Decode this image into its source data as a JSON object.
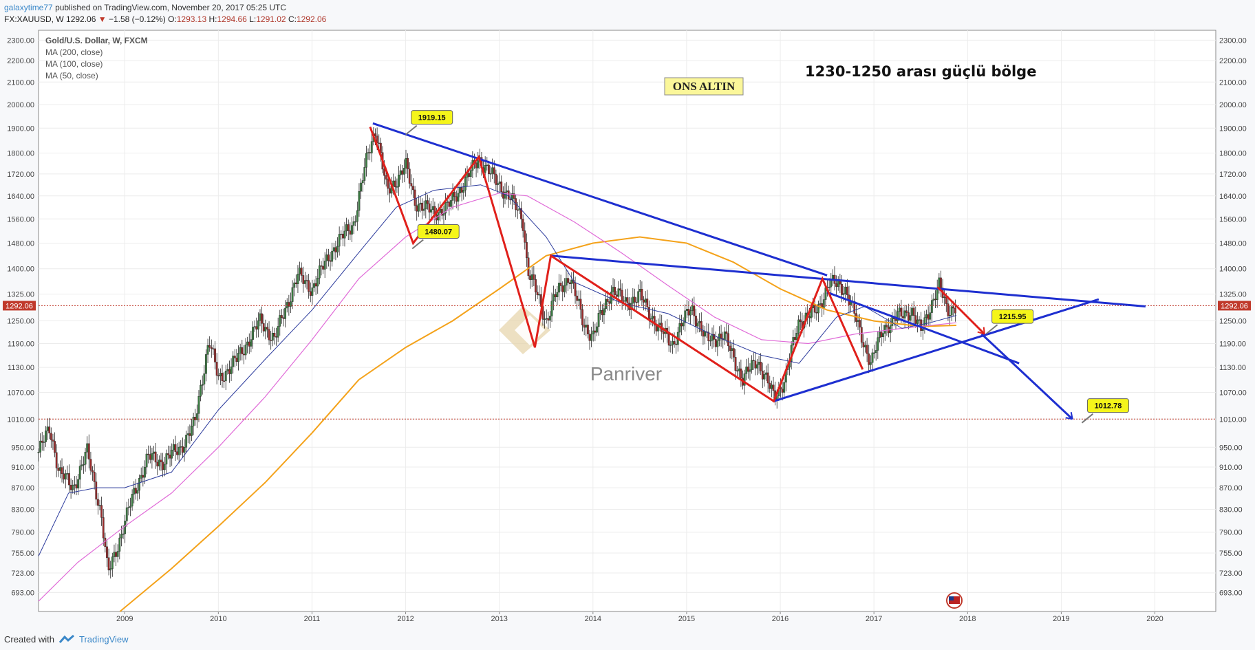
{
  "header": {
    "author": "galaxytime77",
    "published_text": "published on TradingView.com, November 20, 2017 05:25 UTC",
    "symbol": "FX:XAUUSD, W",
    "price": "1292.06",
    "change": "−1.58 (−0.12%)",
    "o_label": "O:",
    "o_value": "1293.13",
    "h_label": "H:",
    "h_value": "1294.66",
    "l_label": "L:",
    "l_value": "1291.02",
    "c_label": "C:",
    "c_value": "1292.06"
  },
  "footer": {
    "created_with": "Created with",
    "brand": "TradingView"
  },
  "colors": {
    "candle_up": "#3b7d42",
    "candle_down": "#9a2b2b",
    "ma200": "#f4a21a",
    "ma100": "#e06bd8",
    "ma50": "#2b3a9c",
    "trend_blue": "#1e2fd0",
    "trend_red": "#e0201b",
    "price_line": "#c0392b",
    "label_yellow": "#f5f51a"
  },
  "chart_data": {
    "type": "candlestick",
    "title": "Gold/U.S. Dollar, W, FXCM",
    "indicators": [
      "MA (200, close)",
      "MA (100, close)",
      "MA (50, close)"
    ],
    "y_scale": "log",
    "ylim": [
      665,
      2350
    ],
    "xlim": [
      2008.08,
      2020.65
    ],
    "y_ticks": [
      "2300.00",
      "2200.00",
      "2100.00",
      "2000.00",
      "1900.00",
      "1800.00",
      "1720.00",
      "1640.00",
      "1560.00",
      "1480.00",
      "1400.00",
      "1325.00",
      "1250.00",
      "1190.00",
      "1130.00",
      "1070.00",
      "1010.00",
      "950.00",
      "910.00",
      "870.00",
      "830.00",
      "790.00",
      "755.00",
      "723.00",
      "693.00"
    ],
    "x_ticks": [
      "2009",
      "2010",
      "2011",
      "2012",
      "2013",
      "2014",
      "2015",
      "2016",
      "2017",
      "2018",
      "2019",
      "2020"
    ],
    "current_price": 1292.06,
    "current_price_label": "1292.06",
    "support_level": 1010,
    "price_path": [
      [
        2008.08,
        940
      ],
      [
        2008.2,
        990
      ],
      [
        2008.3,
        900
      ],
      [
        2008.45,
        870
      ],
      [
        2008.6,
        940
      ],
      [
        2008.75,
        820
      ],
      [
        2008.82,
        720
      ],
      [
        2008.95,
        780
      ],
      [
        2009.1,
        860
      ],
      [
        2009.25,
        930
      ],
      [
        2009.4,
        920
      ],
      [
        2009.6,
        950
      ],
      [
        2009.75,
        1000
      ],
      [
        2009.9,
        1200
      ],
      [
        2010.0,
        1100
      ],
      [
        2010.2,
        1150
      ],
      [
        2010.45,
        1250
      ],
      [
        2010.6,
        1200
      ],
      [
        2010.85,
        1380
      ],
      [
        2011.0,
        1340
      ],
      [
        2011.2,
        1450
      ],
      [
        2011.45,
        1550
      ],
      [
        2011.6,
        1800
      ],
      [
        2011.68,
        1900
      ],
      [
        2011.8,
        1650
      ],
      [
        2012.0,
        1750
      ],
      [
        2012.1,
        1620
      ],
      [
        2012.3,
        1580
      ],
      [
        2012.45,
        1600
      ],
      [
        2012.65,
        1700
      ],
      [
        2012.78,
        1780
      ],
      [
        2012.95,
        1700
      ],
      [
        2013.1,
        1640
      ],
      [
        2013.25,
        1560
      ],
      [
        2013.3,
        1400
      ],
      [
        2013.5,
        1250
      ],
      [
        2013.6,
        1320
      ],
      [
        2013.75,
        1380
      ],
      [
        2013.9,
        1240
      ],
      [
        2014.0,
        1210
      ],
      [
        2014.2,
        1340
      ],
      [
        2014.35,
        1300
      ],
      [
        2014.5,
        1320
      ],
      [
        2014.7,
        1230
      ],
      [
        2014.85,
        1190
      ],
      [
        2015.05,
        1290
      ],
      [
        2015.2,
        1200
      ],
      [
        2015.4,
        1210
      ],
      [
        2015.6,
        1100
      ],
      [
        2015.75,
        1150
      ],
      [
        2015.93,
        1060
      ],
      [
        2016.05,
        1100
      ],
      [
        2016.2,
        1250
      ],
      [
        2016.4,
        1280
      ],
      [
        2016.52,
        1360
      ],
      [
        2016.7,
        1340
      ],
      [
        2016.85,
        1220
      ],
      [
        2016.97,
        1140
      ],
      [
        2017.1,
        1230
      ],
      [
        2017.25,
        1260
      ],
      [
        2017.4,
        1280
      ],
      [
        2017.5,
        1220
      ],
      [
        2017.6,
        1290
      ],
      [
        2017.7,
        1350
      ],
      [
        2017.78,
        1280
      ],
      [
        2017.88,
        1292
      ]
    ],
    "ma_series": [
      {
        "name": "MA (200, close)",
        "points": [
          [
            2008.95,
            665
          ],
          [
            2009.5,
            730
          ],
          [
            2010.0,
            800
          ],
          [
            2010.5,
            880
          ],
          [
            2011.0,
            980
          ],
          [
            2011.5,
            1100
          ],
          [
            2012.0,
            1180
          ],
          [
            2012.5,
            1250
          ],
          [
            2013.0,
            1340
          ],
          [
            2013.5,
            1440
          ],
          [
            2014.0,
            1480
          ],
          [
            2014.5,
            1500
          ],
          [
            2015.0,
            1480
          ],
          [
            2015.5,
            1420
          ],
          [
            2016.0,
            1340
          ],
          [
            2016.5,
            1280
          ],
          [
            2017.0,
            1250
          ],
          [
            2017.5,
            1235
          ],
          [
            2017.88,
            1238
          ]
        ]
      },
      {
        "name": "MA (100, close)",
        "points": [
          [
            2008.08,
            680
          ],
          [
            2008.5,
            740
          ],
          [
            2009.0,
            800
          ],
          [
            2009.5,
            860
          ],
          [
            2010.0,
            950
          ],
          [
            2010.5,
            1060
          ],
          [
            2011.0,
            1200
          ],
          [
            2011.5,
            1370
          ],
          [
            2012.0,
            1500
          ],
          [
            2012.5,
            1600
          ],
          [
            2013.0,
            1650
          ],
          [
            2013.3,
            1640
          ],
          [
            2013.8,
            1550
          ],
          [
            2014.3,
            1450
          ],
          [
            2014.8,
            1350
          ],
          [
            2015.3,
            1260
          ],
          [
            2015.8,
            1200
          ],
          [
            2016.3,
            1190
          ],
          [
            2016.8,
            1215
          ],
          [
            2017.3,
            1230
          ],
          [
            2017.88,
            1245
          ]
        ]
      },
      {
        "name": "MA (50, close)",
        "points": [
          [
            2008.08,
            750
          ],
          [
            2008.4,
            860
          ],
          [
            2008.7,
            870
          ],
          [
            2009.0,
            870
          ],
          [
            2009.5,
            900
          ],
          [
            2010.0,
            1030
          ],
          [
            2010.5,
            1150
          ],
          [
            2011.0,
            1280
          ],
          [
            2011.5,
            1450
          ],
          [
            2011.9,
            1600
          ],
          [
            2012.3,
            1660
          ],
          [
            2012.8,
            1680
          ],
          [
            2013.1,
            1640
          ],
          [
            2013.5,
            1500
          ],
          [
            2013.8,
            1360
          ],
          [
            2014.3,
            1300
          ],
          [
            2014.8,
            1270
          ],
          [
            2015.3,
            1210
          ],
          [
            2015.8,
            1160
          ],
          [
            2016.2,
            1140
          ],
          [
            2016.6,
            1260
          ],
          [
            2016.9,
            1290
          ],
          [
            2017.3,
            1230
          ],
          [
            2017.6,
            1245
          ],
          [
            2017.88,
            1265
          ]
        ]
      }
    ],
    "trendlines_blue": [
      [
        [
          2011.65,
          1920
        ],
        [
          2016.5,
          1380
        ]
      ],
      [
        [
          2013.55,
          1440
        ],
        [
          2019.9,
          1290
        ]
      ],
      [
        [
          2015.93,
          1050
        ],
        [
          2019.4,
          1310
        ]
      ],
      [
        [
          2016.5,
          1330
        ],
        [
          2018.55,
          1140
        ]
      ],
      [
        [
          2018.15,
          1215
        ],
        [
          2019.12,
          1010
        ]
      ]
    ],
    "trendlines_red": [
      [
        [
          2011.62,
          1905
        ],
        [
          2012.08,
          1480
        ],
        [
          2012.78,
          1785
        ],
        [
          2013.38,
          1180
        ],
        [
          2013.55,
          1440
        ],
        [
          2015.93,
          1050
        ],
        [
          2016.45,
          1370
        ],
        [
          2016.88,
          1125
        ]
      ],
      [
        [
          2017.68,
          1345
        ],
        [
          2018.18,
          1215
        ]
      ]
    ],
    "callouts": [
      {
        "text": "1919.15",
        "x": 2012.28,
        "y": 1945
      },
      {
        "text": "1480.07",
        "x": 2012.35,
        "y": 1518
      },
      {
        "text": "1215.95",
        "x": 2018.48,
        "y": 1262
      },
      {
        "text": "1012.78",
        "x": 2019.5,
        "y": 1040
      }
    ],
    "annotations": [
      {
        "text": "ONS ALTIN"
      },
      {
        "text": "1230-1250 arası güçlü bölge"
      }
    ],
    "watermark": "Panriver"
  }
}
